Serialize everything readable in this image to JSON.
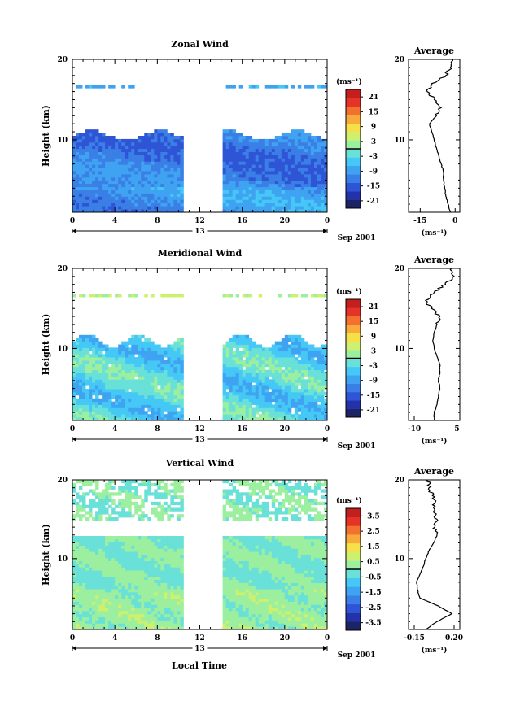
{
  "figure": {
    "x_label": "Local Time",
    "date_label": "Sep 2001",
    "day_label": "13",
    "average_title": "Average",
    "cbar_unit": "(ms⁻¹)",
    "avg_unit": "(ms⁻¹)",
    "colors": {
      "palette": [
        "#1d2466",
        "#2332a8",
        "#2f54d6",
        "#3a7fe6",
        "#3fa3f2",
        "#45c8f5",
        "#69e0d8",
        "#9cef9f",
        "#cdf06e",
        "#f5e04a",
        "#f8ab3a",
        "#f27030",
        "#e53328",
        "#c41f1f"
      ]
    }
  },
  "chart_data": [
    {
      "type": "heatmap",
      "title": "Zonal Wind",
      "ylabel": "Height (km)",
      "xlim": [
        0,
        24
      ],
      "ylim": [
        1,
        20
      ],
      "xticks": [
        "0",
        "4",
        "8",
        "12",
        "16",
        "20",
        "0"
      ],
      "xtick_values": [
        0,
        4,
        8,
        12,
        16,
        20,
        24
      ],
      "yticks": [
        "10",
        "20"
      ],
      "ytick_values": [
        10,
        20
      ],
      "data_gap_hours": [
        10.5,
        14.3
      ],
      "colorbar_ticks": [
        "21",
        "15",
        "9",
        "3",
        "-3",
        "-9",
        "-15",
        "-21"
      ],
      "colorbar_range": [
        -24,
        24
      ],
      "average": {
        "xlim": [
          -20,
          2
        ],
        "xticks": [
          "-15",
          "0"
        ],
        "xtick_values": [
          -15,
          0
        ],
        "height_km": [
          1,
          2,
          3,
          4,
          5,
          6,
          7,
          8,
          9,
          10,
          11,
          12,
          13,
          14,
          15,
          16,
          17,
          18,
          19,
          20
        ],
        "values": [
          -2,
          -3,
          -4,
          -4.5,
          -5,
          -5,
          -6,
          -7,
          -8,
          -9,
          -10,
          -11,
          -8,
          -6,
          -9,
          -12,
          -10,
          -4,
          -2,
          -1
        ]
      }
    },
    {
      "type": "heatmap",
      "title": "Meridional Wind",
      "ylabel": "Height (km)",
      "xlim": [
        0,
        24
      ],
      "ylim": [
        1,
        20
      ],
      "xticks": [
        "0",
        "4",
        "8",
        "12",
        "16",
        "20",
        "0"
      ],
      "xtick_values": [
        0,
        4,
        8,
        12,
        16,
        20,
        24
      ],
      "yticks": [
        "10",
        "20"
      ],
      "ytick_values": [
        10,
        20
      ],
      "data_gap_hours": [
        10.5,
        14.3
      ],
      "colorbar_ticks": [
        "21",
        "15",
        "9",
        "3",
        "-3",
        "-9",
        "-15",
        "-21"
      ],
      "colorbar_range": [
        -24,
        24
      ],
      "average": {
        "xlim": [
          -12,
          6
        ],
        "xticks": [
          "-10",
          "5"
        ],
        "xtick_values": [
          -10,
          5
        ],
        "height_km": [
          1,
          2,
          3,
          4,
          5,
          6,
          7,
          8,
          9,
          10,
          11,
          12,
          13,
          14,
          15,
          16,
          17,
          18,
          19,
          20
        ],
        "values": [
          -3,
          -3,
          -2,
          -1.5,
          -1,
          -1.5,
          -1,
          -1,
          -2,
          -3,
          -3.5,
          -3,
          -2,
          -1,
          -4,
          -6,
          -3,
          1,
          4,
          3
        ]
      }
    },
    {
      "type": "heatmap",
      "title": "Vertical Wind",
      "ylabel": "Height (km)",
      "xlim": [
        0,
        24
      ],
      "ylim": [
        1,
        20
      ],
      "xticks": [
        "0",
        "4",
        "8",
        "12",
        "16",
        "20",
        "0"
      ],
      "xtick_values": [
        0,
        4,
        8,
        12,
        16,
        20,
        24
      ],
      "yticks": [
        "10",
        "20"
      ],
      "ytick_values": [
        10,
        20
      ],
      "data_gap_hours": [
        10.5,
        14.3
      ],
      "colorbar_ticks": [
        "3.5",
        "2.5",
        "1.5",
        "0.5",
        "-0.5",
        "-1.5",
        "-2.5",
        "-3.5"
      ],
      "colorbar_range": [
        -4,
        4
      ],
      "average": {
        "xlim": [
          -0.2,
          0.25
        ],
        "xticks": [
          "-0.15",
          "0.20"
        ],
        "xtick_values": [
          -0.15,
          0.2
        ],
        "height_km": [
          1,
          2,
          3,
          4,
          5,
          6,
          7,
          8,
          9,
          10,
          11,
          12,
          13,
          14,
          15,
          16,
          17,
          18,
          19,
          20
        ],
        "values": [
          -0.05,
          0.05,
          0.18,
          0.06,
          -0.1,
          -0.12,
          -0.13,
          -0.1,
          -0.07,
          -0.05,
          -0.02,
          0.02,
          0.05,
          0.03,
          0.05,
          0.02,
          0.03,
          0.01,
          -0.02,
          -0.03
        ]
      }
    }
  ]
}
